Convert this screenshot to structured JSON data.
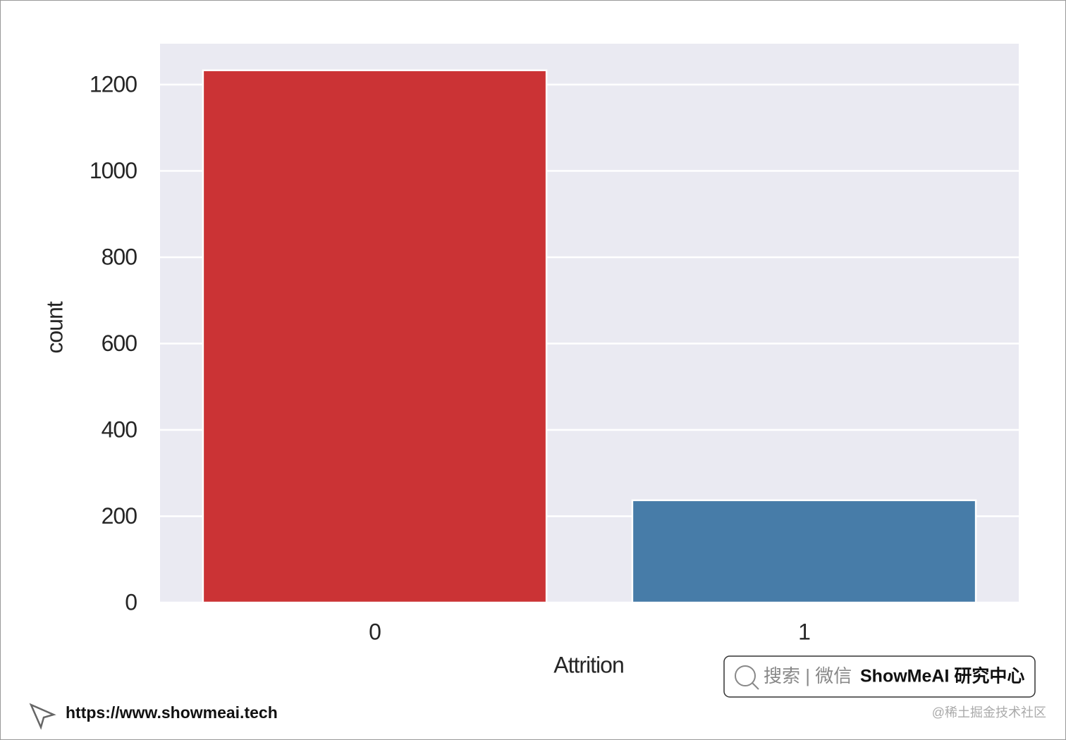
{
  "chart_data": {
    "type": "bar",
    "x_label": "Attrition",
    "y_label": "count",
    "categories": [
      "0",
      "1"
    ],
    "values": [
      1233,
      237
    ],
    "colors": [
      "#cb3335",
      "#477ca8"
    ],
    "ylim": [
      0,
      1294.65
    ],
    "yticks": [
      0,
      200,
      400,
      600,
      800,
      1000,
      1200
    ],
    "grid": true
  },
  "footer": {
    "search_badge": {
      "prefix": "搜索 | 微信",
      "brand": "ShowMeAI 研究中心"
    },
    "url": "https://www.showmeai.tech",
    "credit": "@稀土掘金技术社区"
  }
}
